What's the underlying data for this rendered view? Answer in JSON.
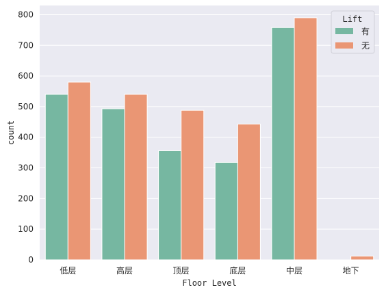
{
  "chart_data": {
    "type": "bar",
    "xlabel": "Floor Level",
    "ylabel": "count",
    "categories": [
      "低层",
      "高层",
      "顶层",
      "底层",
      "中层",
      "地下"
    ],
    "ylim": [
      0,
      830
    ],
    "yticks": [
      0,
      100,
      200,
      300,
      400,
      500,
      600,
      700,
      800
    ],
    "grid": true,
    "legend": {
      "title": "Lift",
      "placement": "top-right"
    },
    "series": [
      {
        "name": "有",
        "color": "#76b7a1",
        "values": [
          540,
          493,
          356,
          318,
          758,
          0
        ]
      },
      {
        "name": "无",
        "color": "#ea9674",
        "values": [
          580,
          540,
          488,
          443,
          790,
          12
        ]
      }
    ]
  }
}
